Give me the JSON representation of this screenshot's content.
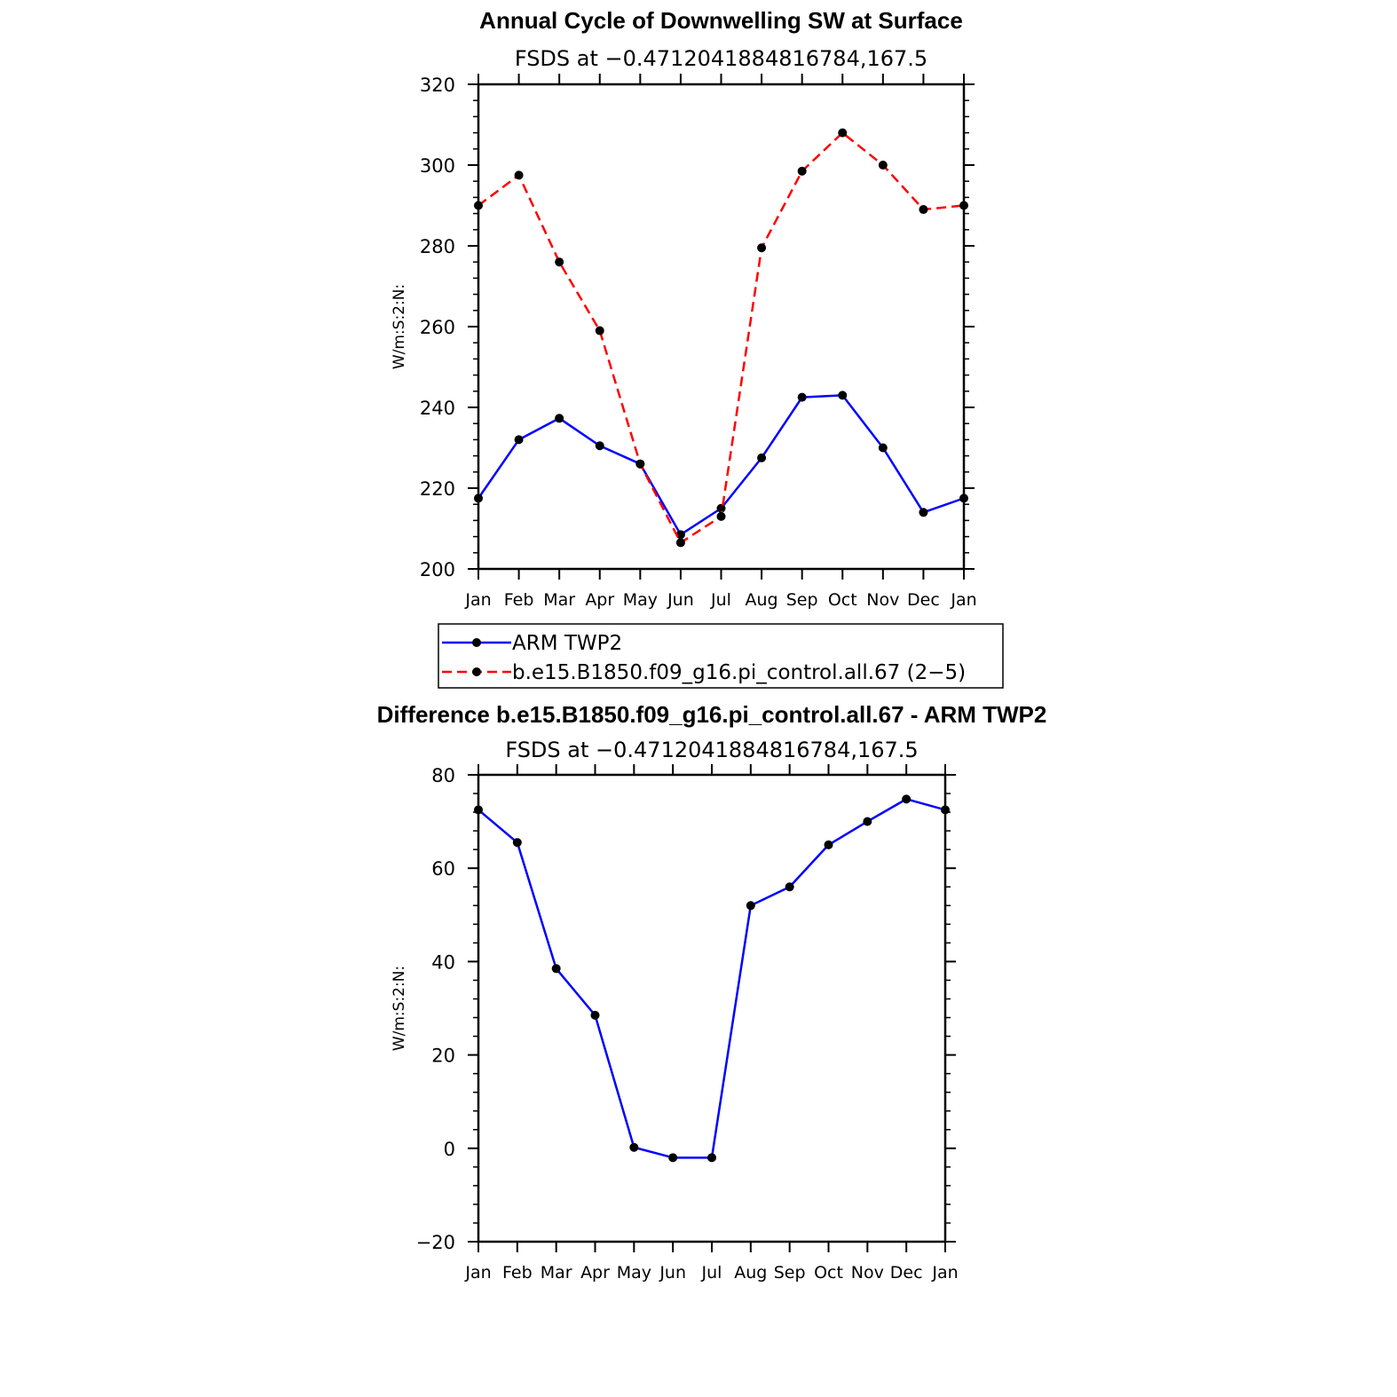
{
  "chart_data": [
    {
      "type": "line",
      "title": "Annual Cycle of Downwelling SW at Surface",
      "subtitle": "FSDS at −0.4712041884816784,167.5",
      "ylabel": "W/m:S:2:N:",
      "xlabel": "",
      "categories": [
        "Jan",
        "Feb",
        "Mar",
        "Apr",
        "May",
        "Jun",
        "Jul",
        "Aug",
        "Sep",
        "Oct",
        "Nov",
        "Dec",
        "Jan"
      ],
      "ylim": [
        200,
        320
      ],
      "yticks": [
        200,
        220,
        240,
        260,
        280,
        300,
        320
      ],
      "grid": false,
      "legend": "below",
      "series": [
        {
          "name": "ARM TWP2",
          "color": "#0000ff",
          "dash": "solid",
          "values": [
            217.5,
            232.0,
            237.3,
            230.5,
            226.0,
            208.5,
            215.0,
            227.5,
            242.5,
            243.0,
            230.0,
            214.0,
            217.5
          ]
        },
        {
          "name": "b.e15.B1850.f09_g16.pi_control.all.67 (2−5)",
          "color": "#ff0000",
          "dash": "dashed",
          "values": [
            290.0,
            297.5,
            276.0,
            259.0,
            226.0,
            206.5,
            213.0,
            279.5,
            298.5,
            308.0,
            300.0,
            289.0,
            290.0
          ]
        }
      ]
    },
    {
      "type": "line",
      "title": "Difference b.e15.B1850.f09_g16.pi_control.all.67 - ARM TWP2",
      "subtitle": "FSDS at −0.4712041884816784,167.5",
      "ylabel": "W/m:S:2:N:",
      "xlabel": "",
      "categories": [
        "Jan",
        "Feb",
        "Mar",
        "Apr",
        "May",
        "Jun",
        "Jul",
        "Aug",
        "Sep",
        "Oct",
        "Nov",
        "Dec",
        "Jan"
      ],
      "ylim": [
        -20,
        80
      ],
      "yticks": [
        -20,
        0,
        20,
        40,
        60,
        80
      ],
      "ytick_labels": [
        "−20",
        "0",
        "20",
        "40",
        "60",
        "80"
      ],
      "grid": false,
      "series": [
        {
          "color": "#0000ff",
          "dash": "solid",
          "values": [
            72.5,
            65.5,
            38.5,
            28.5,
            0.2,
            -2.0,
            -2.0,
            52.0,
            56.0,
            65.0,
            70.0,
            74.8,
            72.5
          ]
        }
      ]
    }
  ]
}
